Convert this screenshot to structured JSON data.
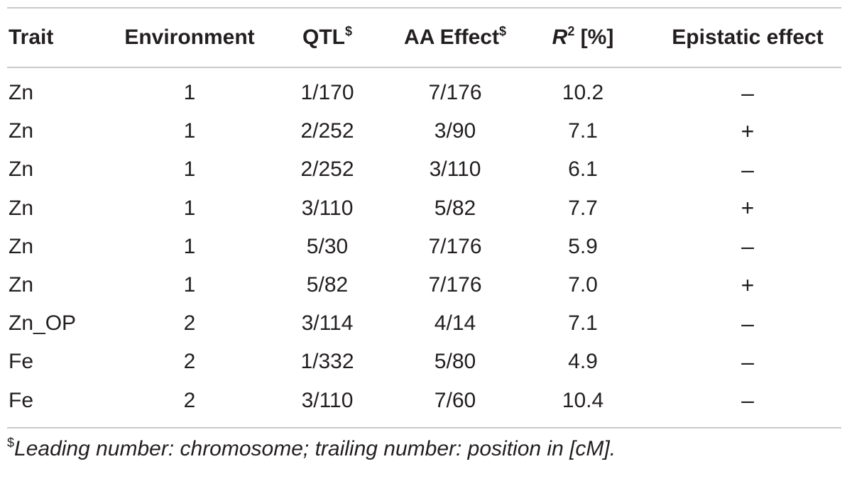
{
  "table": {
    "headers": {
      "trait": "Trait",
      "environment": "Environment",
      "qtl": "QTL",
      "qtl_sup": "$",
      "aa_effect": "AA Effect",
      "aa_effect_sup": "$",
      "r2_symbol": "R",
      "r2_sup": "2",
      "r2_unit": " [%]",
      "epistatic": "Epistatic effect"
    },
    "rows": [
      {
        "trait": "Zn",
        "environment": "1",
        "qtl": "1/170",
        "aa_effect": "7/176",
        "r2": "10.2",
        "epistatic": "–"
      },
      {
        "trait": "Zn",
        "environment": "1",
        "qtl": "2/252",
        "aa_effect": "3/90",
        "r2": "7.1",
        "epistatic": "+"
      },
      {
        "trait": "Zn",
        "environment": "1",
        "qtl": "2/252",
        "aa_effect": "3/110",
        "r2": "6.1",
        "epistatic": "–"
      },
      {
        "trait": "Zn",
        "environment": "1",
        "qtl": "3/110",
        "aa_effect": "5/82",
        "r2": "7.7",
        "epistatic": "+"
      },
      {
        "trait": "Zn",
        "environment": "1",
        "qtl": "5/30",
        "aa_effect": "7/176",
        "r2": "5.9",
        "epistatic": "–"
      },
      {
        "trait": "Zn",
        "environment": "1",
        "qtl": "5/82",
        "aa_effect": "7/176",
        "r2": "7.0",
        "epistatic": "+"
      },
      {
        "trait": "Zn_OP",
        "environment": "2",
        "qtl": "3/114",
        "aa_effect": "4/14",
        "r2": "7.1",
        "epistatic": "–"
      },
      {
        "trait": "Fe",
        "environment": "2",
        "qtl": "1/332",
        "aa_effect": "5/80",
        "r2": "4.9",
        "epistatic": "–"
      },
      {
        "trait": "Fe",
        "environment": "2",
        "qtl": "3/110",
        "aa_effect": "7/60",
        "r2": "10.4",
        "epistatic": "–"
      }
    ]
  },
  "footnote": {
    "marker": "$",
    "text": "Leading number: chromosome; trailing number: position in [cM]."
  }
}
